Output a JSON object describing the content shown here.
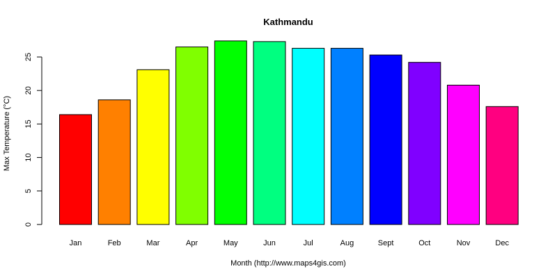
{
  "chart_data": {
    "type": "bar",
    "title": "Kathmandu",
    "xlabel": "Month (http://www.maps4gis.com)",
    "ylabel": "Max Temperature (°C)",
    "categories": [
      "Jan",
      "Feb",
      "Mar",
      "Apr",
      "May",
      "Jun",
      "Jul",
      "Aug",
      "Sept",
      "Oct",
      "Nov",
      "Dec"
    ],
    "values": [
      16.4,
      18.6,
      23.1,
      26.5,
      27.4,
      27.3,
      26.3,
      26.3,
      25.3,
      24.2,
      20.8,
      17.6
    ],
    "colors": [
      "#FF0000",
      "#FF8000",
      "#FFFF00",
      "#80FF00",
      "#00FF00",
      "#00FF80",
      "#00FFFF",
      "#0080FF",
      "#0000FF",
      "#8000FF",
      "#FF00FF",
      "#FF0080"
    ],
    "yticks": [
      0,
      5,
      10,
      15,
      20,
      25
    ],
    "ylim": [
      0,
      28
    ],
    "grid": false,
    "legend": "none"
  }
}
